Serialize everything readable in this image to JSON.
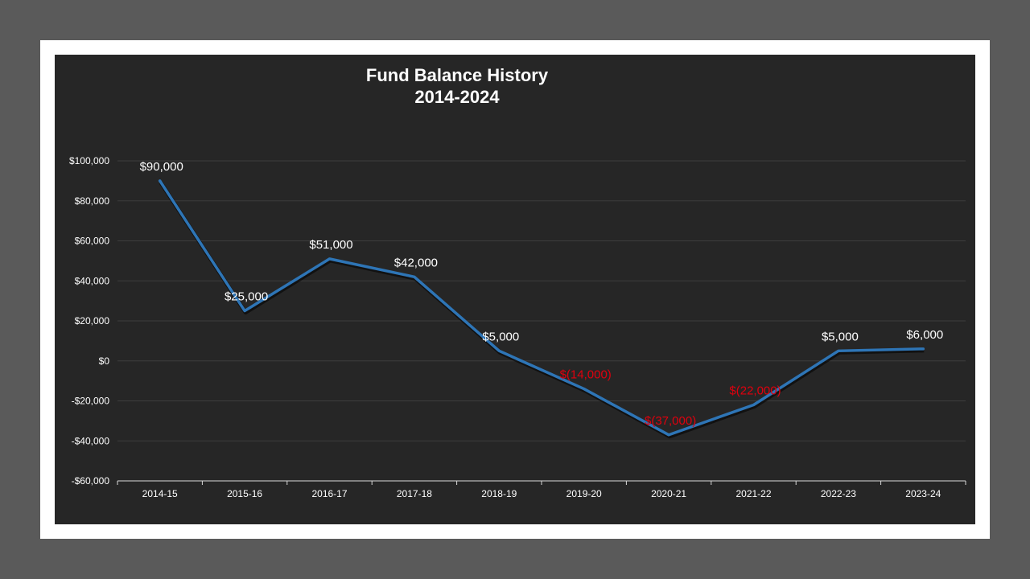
{
  "chart_data": {
    "type": "line",
    "title": "Fund Balance History",
    "subtitle": "2014-2024",
    "categories": [
      "2014-15",
      "2015-16",
      "2016-17",
      "2017-18",
      "2018-19",
      "2019-20",
      "2020-21",
      "2021-22",
      "2022-23",
      "2023-24"
    ],
    "series": [
      {
        "values": [
          90000,
          25000,
          51000,
          42000,
          5000,
          -14000,
          -37000,
          -22000,
          5000,
          6000
        ],
        "color": "#2e75b6"
      }
    ],
    "data_labels": [
      "$90,000",
      "$25,000",
      "$51,000",
      "$42,000",
      "$5,000",
      "$(14,000)",
      "$(37,000)",
      "$(22,000)",
      "$5,000",
      "$6,000"
    ],
    "y_ticks": [
      100000,
      80000,
      60000,
      40000,
      20000,
      0,
      -20000,
      -40000,
      -60000
    ],
    "y_tick_labels": [
      "$100,000",
      "$80,000",
      "$60,000",
      "$40,000",
      "$20,000",
      "$0",
      "-$20,000",
      "-$40,000",
      "-$60,000"
    ],
    "ylim": [
      -60000,
      100000
    ],
    "grid": true,
    "legend": "none",
    "colors": {
      "background": "#262626",
      "frame": "#ffffff",
      "outer": "#5a5a5a",
      "line": "#2e75b6",
      "positive_label": "#ffffff",
      "negative_label": "#e0000e",
      "grid": "#3d3d3d"
    }
  }
}
